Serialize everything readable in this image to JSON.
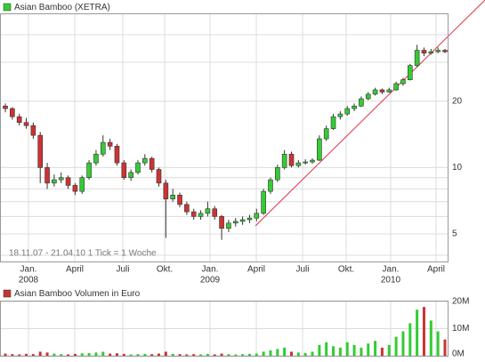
{
  "chart_data": {
    "type": "candlestick",
    "title": "Asian Bamboo (XETRA)",
    "range_note": "18.11.07 - 21.04.10  1 Tick = 1 Woche",
    "log_scale": true,
    "grid": true,
    "up_color": "#33cc33",
    "down_color": "#cc3333",
    "ylim": [
      3.75,
      50
    ],
    "yticks": [
      5,
      10,
      20
    ],
    "minor_yticks": [
      4,
      6,
      7,
      8,
      9,
      30,
      40
    ],
    "xticks": [
      "Jan.",
      "April",
      "Juli",
      "Okt.",
      "Jan.",
      "April",
      "Juli",
      "Okt.",
      "Jan.",
      "April"
    ],
    "xtick_years": [
      "2008",
      null,
      null,
      null,
      "2009",
      null,
      null,
      null,
      "2010",
      null
    ],
    "candles": [
      [
        19,
        19.5,
        17.8,
        18.5
      ],
      [
        18.5,
        18.8,
        16.5,
        17
      ],
      [
        17,
        17.5,
        15.5,
        16
      ],
      [
        16,
        16.8,
        15,
        15.5
      ],
      [
        15.5,
        16,
        13.5,
        14
      ],
      [
        14,
        14.5,
        8.5,
        10
      ],
      [
        10,
        10.5,
        8,
        8.5
      ],
      [
        8.5,
        9.3,
        8.2,
        8.8
      ],
      [
        8.8,
        9.5,
        8.5,
        9
      ],
      [
        9,
        9.2,
        8,
        8.3
      ],
      [
        8.3,
        8.5,
        7.5,
        7.8
      ],
      [
        7.8,
        9.2,
        7.6,
        9
      ],
      [
        9,
        10.8,
        8.8,
        10.5
      ],
      [
        10.5,
        12,
        10.2,
        11.5
      ],
      [
        11.5,
        14,
        11.2,
        13
      ],
      [
        13,
        13.5,
        12,
        12.5
      ],
      [
        12.5,
        12.8,
        10.2,
        10.5
      ],
      [
        10.5,
        10.8,
        8.8,
        9
      ],
      [
        9,
        9.8,
        8.7,
        9.5
      ],
      [
        9.5,
        10.8,
        9.3,
        10.5
      ],
      [
        10.5,
        11.5,
        10.2,
        11
      ],
      [
        11,
        11.2,
        9.5,
        9.8
      ],
      [
        9.8,
        10,
        8.2,
        8.5
      ],
      [
        8.5,
        8.8,
        4.8,
        7.2
      ],
      [
        7.2,
        8,
        7,
        7.5
      ],
      [
        7.5,
        7.7,
        6.6,
        6.8
      ],
      [
        6.8,
        7,
        6.1,
        6.3
      ],
      [
        6.3,
        6.5,
        5.8,
        6
      ],
      [
        6,
        6.4,
        5.8,
        6.2
      ],
      [
        6.2,
        7,
        6,
        6.5
      ],
      [
        6.5,
        6.7,
        5.8,
        6
      ],
      [
        6,
        6.1,
        4.7,
        5.3
      ],
      [
        5.3,
        5.8,
        5.1,
        5.6
      ],
      [
        5.6,
        5.9,
        5.4,
        5.7
      ],
      [
        5.7,
        6,
        5.5,
        5.8
      ],
      [
        5.8,
        6.1,
        5.6,
        5.9
      ],
      [
        5.9,
        6.5,
        5.7,
        6.2
      ],
      [
        6.2,
        8,
        6.1,
        7.8
      ],
      [
        7.8,
        9,
        7.6,
        8.8
      ],
      [
        8.8,
        10.3,
        8.6,
        10
      ],
      [
        10,
        12,
        9.8,
        11.5
      ],
      [
        11.5,
        11.8,
        10,
        10.2
      ],
      [
        10.2,
        10.8,
        10,
        10.5
      ],
      [
        10.5,
        10.9,
        10.3,
        10.6
      ],
      [
        10.6,
        11,
        10.4,
        10.8
      ],
      [
        10.8,
        14,
        10.7,
        13.5
      ],
      [
        13.5,
        15.5,
        13.2,
        15
      ],
      [
        15,
        17.5,
        14.8,
        17
      ],
      [
        17,
        18,
        16.5,
        17.5
      ],
      [
        17.5,
        19,
        17.2,
        18.5
      ],
      [
        18.5,
        19.5,
        18,
        19
      ],
      [
        19,
        21,
        18.8,
        20.5
      ],
      [
        20.5,
        22,
        20.2,
        21.5
      ],
      [
        21.5,
        23,
        21.2,
        22.5
      ],
      [
        22.5,
        22.8,
        21.5,
        22
      ],
      [
        22,
        23,
        21.8,
        22.5
      ],
      [
        22.5,
        24.5,
        22.3,
        24
      ],
      [
        24,
        25.5,
        23.5,
        25
      ],
      [
        25,
        29.5,
        24.8,
        29
      ],
      [
        29,
        36,
        28.5,
        34
      ],
      [
        34,
        35,
        32,
        33
      ],
      [
        33,
        34.5,
        32.5,
        33.5
      ],
      [
        33.5,
        35,
        33,
        34
      ],
      [
        34,
        34.5,
        33,
        33.5
      ]
    ],
    "volume_title": "Asian Bamboo Volumen in Euro",
    "volume_ylim": [
      0,
      20
    ],
    "volume_yticks": [
      {
        "value": 0,
        "label": "0M"
      },
      {
        "value": 10,
        "label": "10M"
      },
      {
        "value": 20,
        "label": "20M"
      }
    ],
    "volumes": [
      0.8,
      0.6,
      0.5,
      0.7,
      0.6,
      1.5,
      1.2,
      0.8,
      0.6,
      0.5,
      0.7,
      0.9,
      1,
      1.2,
      1.5,
      0.8,
      0.9,
      0.7,
      0.5,
      0.6,
      0.7,
      0.6,
      0.8,
      1.5,
      0.7,
      0.6,
      0.5,
      0.6,
      0.5,
      0.7,
      0.5,
      0.8,
      0.6,
      0.5,
      0.6,
      0.7,
      0.8,
      1.5,
      2,
      2.5,
      3,
      1.5,
      1.2,
      1,
      1.5,
      4,
      5,
      3.5,
      3,
      5,
      4,
      3,
      4.5,
      5.5,
      3,
      4,
      7,
      9,
      12,
      17,
      18,
      13,
      9,
      6
    ]
  }
}
